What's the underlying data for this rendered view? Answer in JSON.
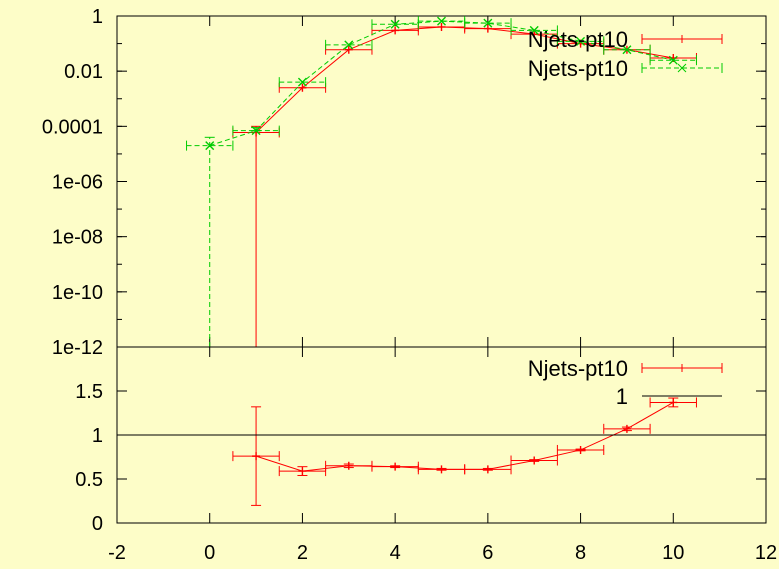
{
  "chart_data": [
    {
      "type": "line",
      "yscale": "log",
      "xlim": [
        -2,
        12
      ],
      "ylim": [
        1e-12,
        1
      ],
      "yticks": [
        "1",
        "0.01",
        "0.0001",
        "1e-06",
        "1e-08",
        "1e-10",
        "1e-12"
      ],
      "xlabel": "",
      "ylabel": "",
      "grid": false,
      "legend_position": "top-right",
      "series": [
        {
          "name": "Njets-pt10",
          "color": "#ff0000",
          "style": "solid",
          "marker": "plus",
          "x": [
            1,
            2,
            3,
            4,
            5,
            6,
            7,
            8,
            9,
            10
          ],
          "y": [
            6e-05,
            0.0025,
            0.06,
            0.3,
            0.4,
            0.35,
            0.22,
            0.1,
            0.06,
            0.03
          ],
          "x_err": 0.5,
          "y_low": [
            1e-12,
            0.0025,
            0.06,
            0.3,
            0.4,
            0.35,
            0.22,
            0.1,
            0.06,
            0.03
          ],
          "y_high": [
            0.0001,
            0.0025,
            0.06,
            0.3,
            0.4,
            0.35,
            0.22,
            0.1,
            0.06,
            0.03
          ]
        },
        {
          "name": "Njets-pt10",
          "color": "#00cc00",
          "style": "dashed",
          "marker": "x",
          "x": [
            0,
            1,
            2,
            3,
            4,
            5,
            6,
            7,
            8,
            9,
            10
          ],
          "y": [
            2e-05,
            7e-05,
            0.004,
            0.09,
            0.5,
            0.65,
            0.55,
            0.3,
            0.12,
            0.06,
            0.025
          ],
          "x_err": 0.5,
          "y_low": [
            1e-12,
            7e-05,
            0.004,
            0.09,
            0.5,
            0.65,
            0.55,
            0.3,
            0.12,
            0.06,
            0.025
          ],
          "y_high": [
            4e-05,
            9e-05,
            0.004,
            0.09,
            0.5,
            0.65,
            0.55,
            0.3,
            0.12,
            0.06,
            0.025
          ]
        }
      ]
    },
    {
      "type": "line",
      "yscale": "linear",
      "xlim": [
        -2,
        12
      ],
      "ylim": [
        0,
        2
      ],
      "xticks": [
        "-2",
        "0",
        "2",
        "4",
        "6",
        "8",
        "10",
        "12"
      ],
      "yticks": [
        "0",
        "0.5",
        "1",
        "1.5"
      ],
      "xlabel": "",
      "ylabel": "",
      "grid": false,
      "legend_position": "top-right",
      "series": [
        {
          "name": "Njets-pt10",
          "color": "#ff0000",
          "style": "solid",
          "marker": "plus",
          "x": [
            1,
            2,
            3,
            4,
            5,
            6,
            7,
            8,
            9,
            10
          ],
          "y": [
            0.76,
            0.59,
            0.65,
            0.64,
            0.61,
            0.61,
            0.71,
            0.83,
            1.07,
            1.37
          ],
          "x_err": 0.5,
          "y_low": [
            0.2,
            0.54,
            0.63,
            0.63,
            0.6,
            0.6,
            0.7,
            0.82,
            1.05,
            1.32
          ],
          "y_high": [
            1.32,
            0.64,
            0.67,
            0.65,
            0.62,
            0.62,
            0.72,
            0.84,
            1.09,
            1.42
          ]
        },
        {
          "name": "1",
          "color": "#000000",
          "style": "solid",
          "marker": "none",
          "x": [
            -2,
            12
          ],
          "y": [
            1,
            1
          ]
        }
      ]
    }
  ]
}
